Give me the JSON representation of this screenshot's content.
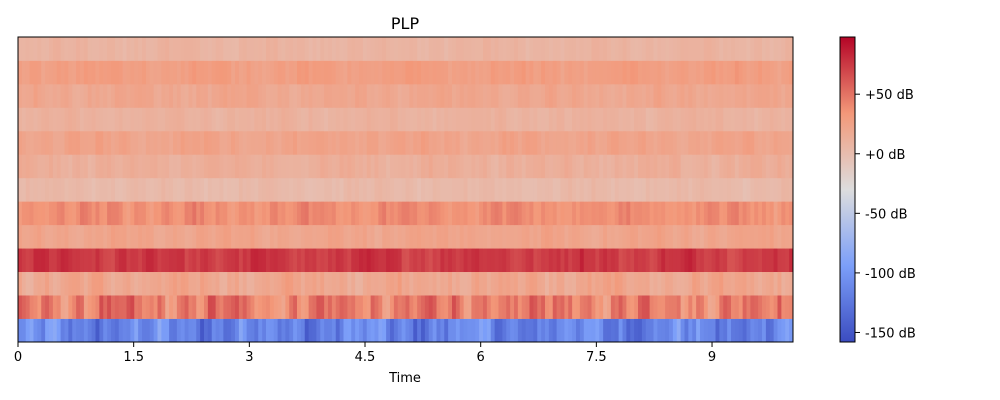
{
  "chart_data": {
    "type": "heatmap",
    "title": "PLP",
    "xlabel": "Time",
    "ylabel": "",
    "x_ticks": [
      "0",
      "1.5",
      "3",
      "4.5",
      "6",
      "7.5",
      "9"
    ],
    "x_tick_values": [
      0,
      1.5,
      3,
      4.5,
      6,
      7.5,
      9
    ],
    "xlim": [
      0,
      10.05
    ],
    "n_rows": 13,
    "n_frames": 200,
    "colormap": "coolwarm",
    "colorbar": {
      "range": [
        -158,
        98
      ],
      "ticks": [
        -150,
        -100,
        -50,
        0,
        50
      ],
      "tick_labels": [
        "-150 dB",
        "-100 dB",
        "-50 dB",
        "+0 dB",
        "+50 dB"
      ]
    },
    "row_mean_db": [
      -115,
      45,
      20,
      75,
      22,
      38,
      3,
      13,
      23,
      10,
      20,
      28,
      8
    ],
    "row_variation_db": [
      38,
      30,
      14,
      12,
      8,
      14,
      6,
      8,
      8,
      6,
      8,
      8,
      6
    ],
    "grid": false
  }
}
